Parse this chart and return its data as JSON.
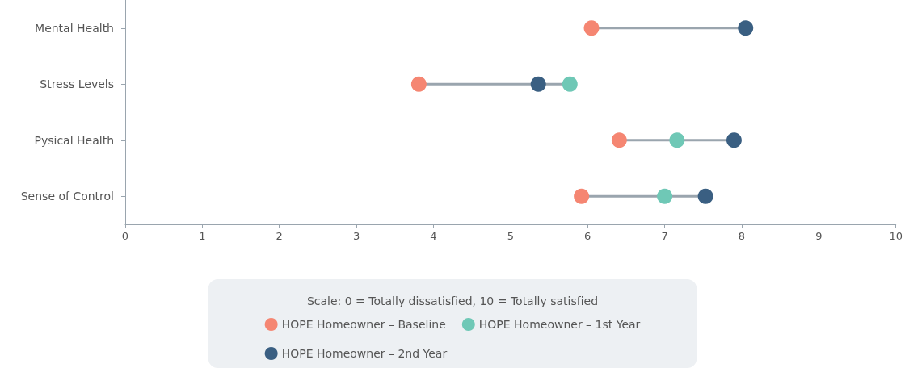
{
  "chart_data": {
    "type": "scatter",
    "orientation": "horizontal",
    "categories": [
      "Mental Health",
      "Stress Levels",
      "Pysical Health",
      "Sense of Control"
    ],
    "series": [
      {
        "name": "HOPE Homeowner – Baseline",
        "color": "#f58672",
        "values": [
          6.05,
          3.81,
          6.41,
          5.92
        ]
      },
      {
        "name": "HOPE Homeowner – 1st Year",
        "color": "#6fc8b6",
        "values": [
          null,
          5.77,
          7.16,
          7.0
        ]
      },
      {
        "name": "HOPE Homeowner – 2nd Year",
        "color": "#3a5f82",
        "values": [
          8.05,
          5.36,
          7.9,
          7.53
        ]
      }
    ],
    "xlim": [
      0,
      10
    ],
    "xticks": [
      0,
      1,
      2,
      3,
      4,
      5,
      6,
      7,
      8,
      9,
      10
    ],
    "grid": false,
    "marker": "circle",
    "legend": "bottom",
    "annotations": [
      "Scale: 0 = Totally dissatisfied, 10 = Totally satisfied"
    ]
  }
}
